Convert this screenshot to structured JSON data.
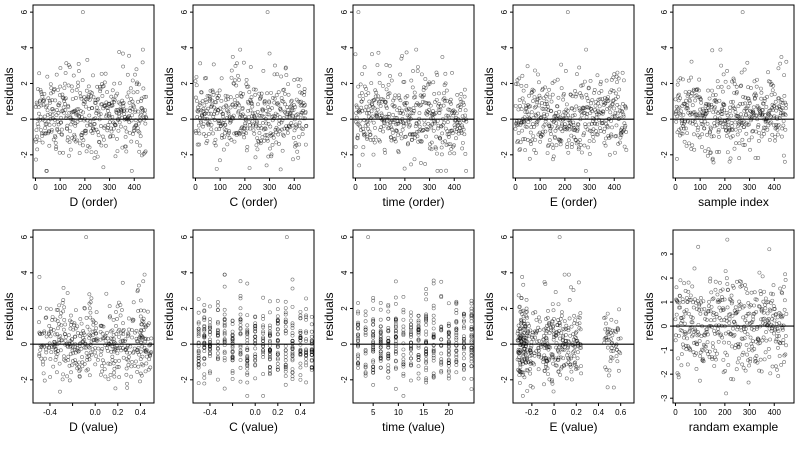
{
  "chart_data": [
    {
      "type": "scatter",
      "ylabel": "residuals",
      "xlabel": "D (order)",
      "xlim": [
        -10,
        480
      ],
      "ylim": [
        -3.3,
        6.4
      ],
      "xticks": [
        0,
        100,
        200,
        300,
        400
      ],
      "yticks": [
        -2,
        0,
        2,
        4,
        6
      ],
      "refline": 0,
      "pattern": "order",
      "n": 450,
      "seed": 11,
      "highlights": [
        {
          "x": 192,
          "y": 6.0
        }
      ]
    },
    {
      "type": "scatter",
      "ylabel": "residuals",
      "xlabel": "C (order)",
      "xlim": [
        -10,
        480
      ],
      "ylim": [
        -3.3,
        6.4
      ],
      "xticks": [
        0,
        100,
        200,
        300,
        400
      ],
      "yticks": [
        -2,
        0,
        2,
        4,
        6
      ],
      "refline": 0,
      "pattern": "order",
      "n": 450,
      "seed": 23,
      "highlights": [
        {
          "x": 292,
          "y": 6.0
        }
      ]
    },
    {
      "type": "scatter",
      "ylabel": "residuals",
      "xlabel": "time (order)",
      "xlim": [
        -10,
        480
      ],
      "ylim": [
        -3.3,
        6.4
      ],
      "xticks": [
        0,
        100,
        200,
        300,
        400
      ],
      "yticks": [
        -2,
        0,
        2,
        4,
        6
      ],
      "refline": 0,
      "pattern": "order",
      "n": 450,
      "seed": 37,
      "highlights": [
        {
          "x": 12,
          "y": 6.0
        }
      ]
    },
    {
      "type": "scatter",
      "ylabel": "residuals",
      "xlabel": "E (order)",
      "xlim": [
        -10,
        480
      ],
      "ylim": [
        -3.3,
        6.4
      ],
      "xticks": [
        0,
        100,
        200,
        300,
        400
      ],
      "yticks": [
        -2,
        0,
        2,
        4,
        6
      ],
      "refline": 0,
      "pattern": "order",
      "n": 450,
      "seed": 41,
      "highlights": [
        {
          "x": 212,
          "y": 6.0
        }
      ]
    },
    {
      "type": "scatter",
      "ylabel": "residuals",
      "xlabel": "sample index",
      "xlim": [
        -10,
        480
      ],
      "ylim": [
        -3.3,
        6.4
      ],
      "xticks": [
        0,
        100,
        200,
        300,
        400
      ],
      "yticks": [
        -2,
        0,
        2,
        4,
        6
      ],
      "refline": 0,
      "pattern": "order",
      "n": 450,
      "seed": 53,
      "highlights": [
        {
          "x": 272,
          "y": 6.0
        }
      ]
    },
    {
      "type": "scatter",
      "ylabel": "residuals",
      "xlabel": "D (value)",
      "xlim": [
        -0.55,
        0.52
      ],
      "ylim": [
        -3.3,
        6.4
      ],
      "xticks": [
        -0.4,
        -0.2,
        0.0,
        0.2,
        0.4
      ],
      "xticklabels": [
        "-0.4",
        "",
        "0.0",
        "0.2",
        "0.4"
      ],
      "yticks": [
        -2,
        0,
        2,
        4,
        6
      ],
      "refline": 0,
      "pattern": "value",
      "xmin": -0.5,
      "xmax": 0.5,
      "n": 450,
      "seed": 61,
      "highlights": [
        {
          "x": -0.08,
          "y": 6.0
        }
      ]
    },
    {
      "type": "scatter",
      "ylabel": "residuals",
      "xlabel": "C (value)",
      "xlim": [
        -0.55,
        0.52
      ],
      "ylim": [
        -3.3,
        6.4
      ],
      "xticks": [
        -0.4,
        -0.2,
        0.0,
        0.2,
        0.4
      ],
      "xticklabels": [
        "-0.4",
        "",
        "0.0",
        "0.2",
        "0.4"
      ],
      "yticks": [
        -2,
        0,
        2,
        4,
        6
      ],
      "refline": 0,
      "pattern": "columns",
      "columns": [
        -0.5,
        -0.45,
        -0.4,
        -0.33,
        -0.27,
        -0.2,
        -0.13,
        -0.07,
        0.0,
        0.07,
        0.13,
        0.2,
        0.27,
        0.33,
        0.4,
        0.45,
        0.5
      ],
      "n": 450,
      "seed": 71,
      "highlights": [
        {
          "x": 0.28,
          "y": 6.0
        }
      ]
    },
    {
      "type": "scatter",
      "ylabel": "residuals",
      "xlabel": "time (value)",
      "xlim": [
        1,
        25
      ],
      "ylim": [
        -3.3,
        6.4
      ],
      "xticks": [
        5,
        10,
        15,
        20
      ],
      "yticks": [
        -2,
        0,
        2,
        4,
        6
      ],
      "refline": 0,
      "pattern": "columns",
      "columns": [
        2,
        3.5,
        5,
        6.5,
        8,
        9.5,
        11,
        12.5,
        14,
        15.5,
        17,
        18.5,
        20,
        21.5,
        23,
        24.5
      ],
      "n": 450,
      "seed": 83,
      "highlights": [
        {
          "x": 4,
          "y": 6.0
        }
      ]
    },
    {
      "type": "scatter",
      "ylabel": "residuals",
      "xlabel": "E (value)",
      "xlim": [
        -0.37,
        0.72
      ],
      "ylim": [
        -3.3,
        6.4
      ],
      "xticks": [
        -0.2,
        0.0,
        0.2,
        0.4,
        0.6
      ],
      "yticks": [
        -2,
        0,
        2,
        4,
        6
      ],
      "refline": 0,
      "pattern": "evalue",
      "n": 450,
      "seed": 97,
      "highlights": [
        {
          "x": 0.05,
          "y": 6.0
        }
      ]
    },
    {
      "type": "scatter",
      "ylabel": "residuals",
      "xlabel": "randam example",
      "xlim": [
        -10,
        480
      ],
      "ylim": [
        -3.2,
        4.0
      ],
      "xticks": [
        0,
        100,
        200,
        300,
        400
      ],
      "yticks": [
        -3,
        -2,
        -1,
        0,
        1,
        2,
        3
      ],
      "refline": 0,
      "pattern": "random",
      "n": 450,
      "seed": 101,
      "highlights": [
        {
          "x": 210,
          "y": 3.6
        },
        {
          "x": 380,
          "y": 3.2
        }
      ]
    }
  ]
}
